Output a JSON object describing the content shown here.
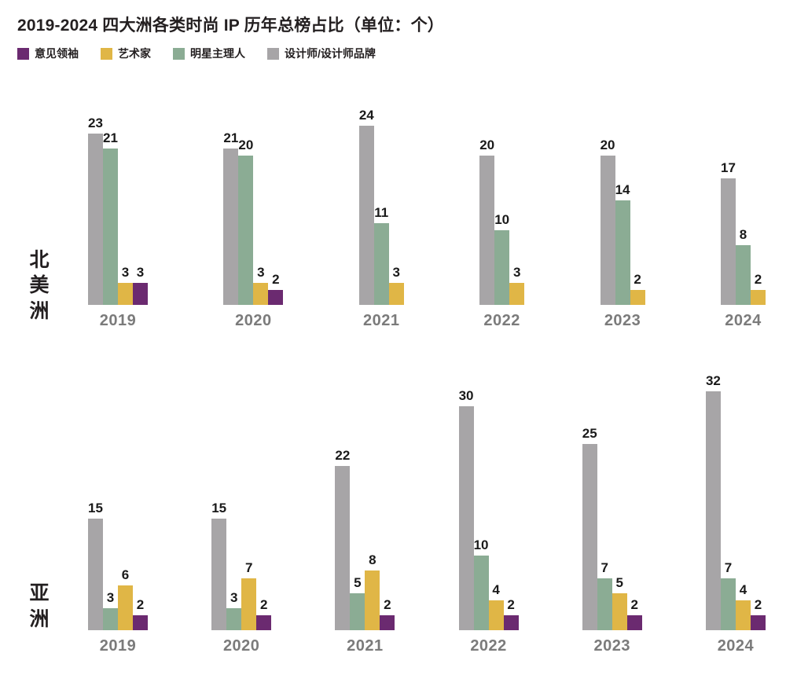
{
  "title": "2019-2024 四大洲各类时尚 IP 历年总榜占比（单位：个）",
  "legend": [
    {
      "key": "kol",
      "label": "意见领袖",
      "color": "#6B2A70"
    },
    {
      "key": "artist",
      "label": "艺术家",
      "color": "#E0B646"
    },
    {
      "key": "celebrity",
      "label": "明星主理人",
      "color": "#8BAC94"
    },
    {
      "key": "designer",
      "label": "设计师/设计师品牌",
      "color": "#A7A5A7"
    }
  ],
  "chart_data": [
    {
      "type": "bar",
      "region": "北美洲",
      "categories": [
        "2019",
        "2020",
        "2021",
        "2022",
        "2023",
        "2024"
      ],
      "series": [
        {
          "key": "designer",
          "name": "设计师/设计师品牌",
          "color": "#A7A5A7",
          "values": [
            23,
            21,
            24,
            20,
            20,
            17
          ]
        },
        {
          "key": "celebrity",
          "name": "明星主理人",
          "color": "#8BAC94",
          "values": [
            21,
            20,
            11,
            10,
            14,
            8
          ]
        },
        {
          "key": "artist",
          "name": "艺术家",
          "color": "#E0B646",
          "values": [
            3,
            3,
            3,
            3,
            2,
            2
          ]
        },
        {
          "key": "kol",
          "name": "意见领袖",
          "color": "#6B2A70",
          "values": [
            3,
            2,
            0,
            0,
            0,
            0
          ]
        }
      ],
      "ylim": [
        0,
        24
      ],
      "grid": false,
      "bar_labels": true
    },
    {
      "type": "bar",
      "region": "亚洲",
      "categories": [
        "2019",
        "2020",
        "2021",
        "2022",
        "2023",
        "2024"
      ],
      "series": [
        {
          "key": "designer",
          "name": "设计师/设计师品牌",
          "color": "#A7A5A7",
          "values": [
            15,
            15,
            22,
            30,
            25,
            32
          ]
        },
        {
          "key": "celebrity",
          "name": "明星主理人",
          "color": "#8BAC94",
          "values": [
            3,
            3,
            5,
            10,
            7,
            7
          ]
        },
        {
          "key": "artist",
          "name": "艺术家",
          "color": "#E0B646",
          "values": [
            6,
            7,
            8,
            4,
            5,
            4
          ]
        },
        {
          "key": "kol",
          "name": "意见领袖",
          "color": "#6B2A70",
          "values": [
            2,
            2,
            2,
            2,
            2,
            2
          ]
        }
      ],
      "ylim": [
        0,
        32
      ],
      "grid": false,
      "bar_labels": true
    }
  ]
}
